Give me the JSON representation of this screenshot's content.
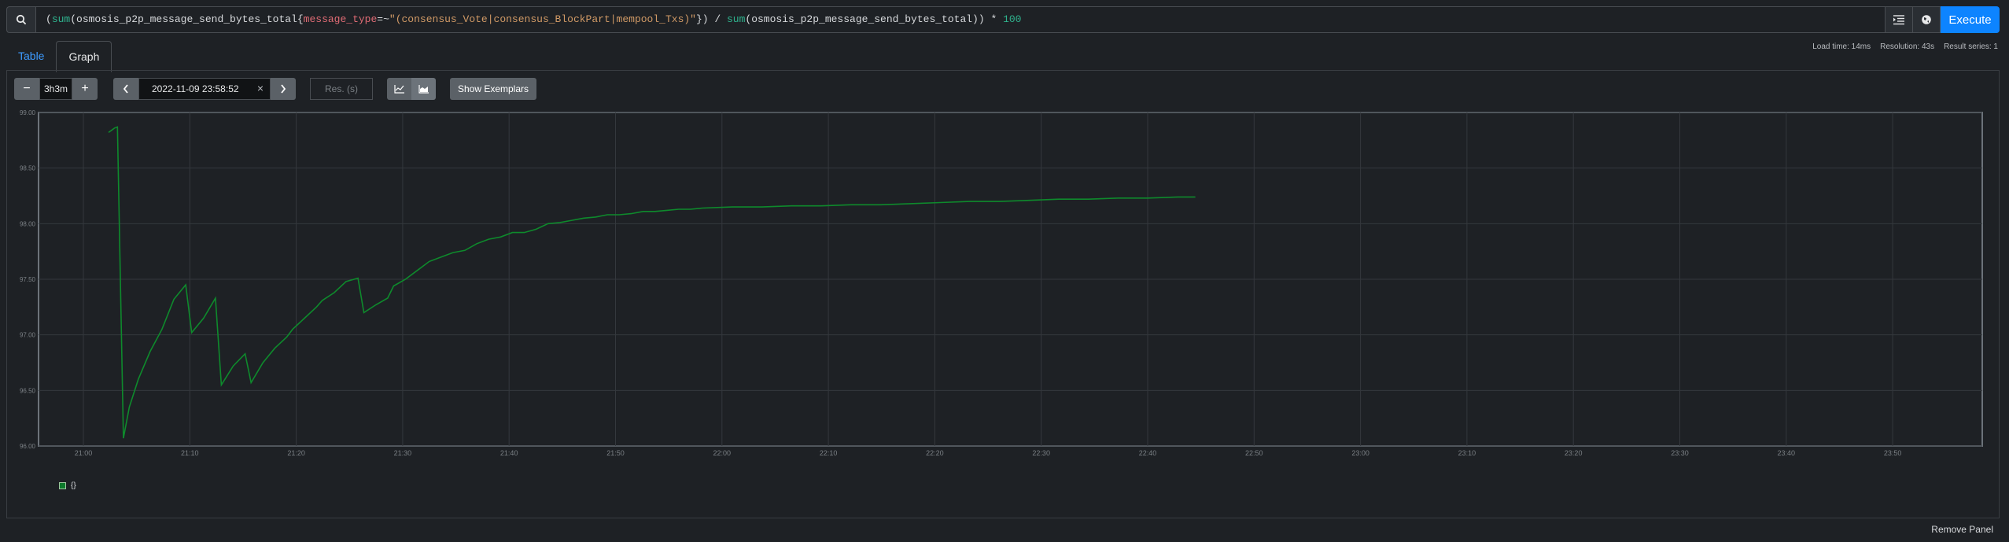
{
  "query": {
    "expression_parts": [
      {
        "t": "(",
        "c": ""
      },
      {
        "t": "sum",
        "c": "fn"
      },
      {
        "t": "(osmosis_p2p_message_send_bytes_total{",
        "c": ""
      },
      {
        "t": "message_type",
        "c": "label"
      },
      {
        "t": "=~",
        "c": ""
      },
      {
        "t": "\"(consensus_Vote|consensus_BlockPart|mempool_Txs)\"",
        "c": "str"
      },
      {
        "t": "}) / ",
        "c": ""
      },
      {
        "t": "sum",
        "c": "fn"
      },
      {
        "t": "(osmosis_p2p_message_send_bytes_total)) * ",
        "c": ""
      },
      {
        "t": "100",
        "c": "num"
      }
    ],
    "execute_label": "Execute"
  },
  "tabs": [
    {
      "label": "Table",
      "active": false
    },
    {
      "label": "Graph",
      "active": true
    }
  ],
  "stats": {
    "load_time": "Load time: 14ms",
    "resolution": "Resolution: 43s",
    "result_series": "Result series: 1"
  },
  "controls": {
    "range_value": "3h3m",
    "end_time": "2022-11-09 23:58:52",
    "resolution_placeholder": "Res. (s)",
    "exemplars_label": "Show Exemplars",
    "minus_label": "−",
    "plus_label": "+",
    "clear_label": "×"
  },
  "chart_data": {
    "type": "line",
    "y_ticks": [
      "96.00",
      "96.50",
      "97.00",
      "97.50",
      "98.00",
      "98.50",
      "99.00"
    ],
    "ylim": [
      96.0,
      99.0
    ],
    "x_ticks": [
      "21:00",
      "21:10",
      "21:20",
      "21:30",
      "21:40",
      "21:50",
      "22:00",
      "22:10",
      "22:20",
      "22:30",
      "22:40",
      "22:50",
      "23:00",
      "23:10",
      "23:20",
      "23:30",
      "23:40",
      "23:50"
    ],
    "line_color": "#0e8a2c",
    "series": [
      {
        "name": "{}",
        "points": [
          [
            0.0,
            98.82
          ],
          [
            1.0,
            98.86
          ],
          [
            1.5,
            98.87
          ],
          [
            2.5,
            96.07
          ],
          [
            3.5,
            96.35
          ],
          [
            5,
            96.6
          ],
          [
            7,
            96.85
          ],
          [
            9,
            97.05
          ],
          [
            11,
            97.32
          ],
          [
            13,
            97.45
          ],
          [
            14,
            97.02
          ],
          [
            16,
            97.15
          ],
          [
            18,
            97.33
          ],
          [
            19,
            96.55
          ],
          [
            21,
            96.72
          ],
          [
            23,
            96.83
          ],
          [
            24,
            96.57
          ],
          [
            26,
            96.75
          ],
          [
            28,
            96.88
          ],
          [
            30,
            96.98
          ],
          [
            31,
            97.05
          ],
          [
            33,
            97.15
          ],
          [
            35,
            97.25
          ],
          [
            36,
            97.31
          ],
          [
            38,
            97.38
          ],
          [
            40,
            97.48
          ],
          [
            42,
            97.51
          ],
          [
            43,
            97.2
          ],
          [
            45,
            97.27
          ],
          [
            47,
            97.33
          ],
          [
            48,
            97.44
          ],
          [
            50,
            97.5
          ],
          [
            52,
            97.58
          ],
          [
            54,
            97.66
          ],
          [
            56,
            97.7
          ],
          [
            58,
            97.74
          ],
          [
            60,
            97.76
          ],
          [
            62,
            97.82
          ],
          [
            64,
            97.86
          ],
          [
            66,
            97.88
          ],
          [
            68,
            97.92
          ],
          [
            70,
            97.92
          ],
          [
            72,
            97.95
          ],
          [
            74,
            98.0
          ],
          [
            76,
            98.01
          ],
          [
            78,
            98.03
          ],
          [
            80,
            98.05
          ],
          [
            82,
            98.06
          ],
          [
            84,
            98.08
          ],
          [
            86,
            98.08
          ],
          [
            88,
            98.09
          ],
          [
            90,
            98.11
          ],
          [
            92,
            98.11
          ],
          [
            94,
            98.12
          ],
          [
            96,
            98.13
          ],
          [
            98,
            98.13
          ],
          [
            100,
            98.14
          ],
          [
            105,
            98.15
          ],
          [
            110,
            98.15
          ],
          [
            115,
            98.16
          ],
          [
            120,
            98.16
          ],
          [
            125,
            98.17
          ],
          [
            130,
            98.17
          ],
          [
            135,
            98.18
          ],
          [
            140,
            98.19
          ],
          [
            145,
            98.2
          ],
          [
            150,
            98.2
          ],
          [
            155,
            98.21
          ],
          [
            160,
            98.22
          ],
          [
            165,
            98.22
          ],
          [
            170,
            98.23
          ],
          [
            175,
            98.23
          ],
          [
            180,
            98.24
          ],
          [
            183,
            98.24
          ]
        ]
      }
    ]
  },
  "legend": {
    "label": "{}"
  },
  "remove_panel_label": "Remove Panel"
}
